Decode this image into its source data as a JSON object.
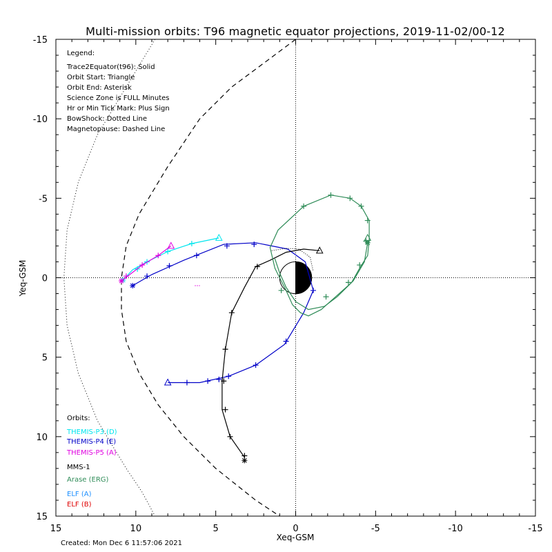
{
  "chart_data": {
    "type": "line",
    "title": "Multi-mission orbits: T96 magnetic equator projections, 2019-11-02/00-12",
    "xlabel": "Xeq-GSM",
    "ylabel": "Yeq-GSM",
    "xlim": [
      15,
      -15
    ],
    "ylim": [
      15,
      -15
    ],
    "x_ticks": [
      "15",
      "10",
      "5",
      "0",
      "-5",
      "-10",
      "-15"
    ],
    "y_ticks": [
      "-15",
      "-10",
      "-5",
      "0",
      "5",
      "10",
      "15"
    ],
    "grid": false,
    "zero_lines": "dotted",
    "legend_header": "Legend:",
    "legend_lines": [
      "Trace2Equator(t96): Solid",
      "Orbit Start: Triangle",
      "Orbit End: Asterisk",
      "Science Zone is FULL Minutes",
      "Hr or Min Tick Mark: Plus Sign",
      "BowShock: Dotted Line",
      "Magnetopause: Dashed Line"
    ],
    "orbits_header": "Orbits:",
    "created": "Created: Mon Dec  6 11:57:06 2021",
    "boundaries": {
      "bow_shock": {
        "style": "dotted",
        "points": [
          [
            8.8,
            -15
          ],
          [
            10.6,
            -12
          ],
          [
            12.4,
            -9
          ],
          [
            13.6,
            -6
          ],
          [
            14.3,
            -3
          ],
          [
            14.5,
            0
          ],
          [
            14.3,
            3
          ],
          [
            13.6,
            6
          ],
          [
            12.4,
            9
          ],
          [
            10.6,
            12
          ],
          [
            9.6,
            13.5
          ],
          [
            8.8,
            15
          ]
        ]
      },
      "magnetopause": {
        "style": "dashed",
        "points": [
          [
            0,
            -15
          ],
          [
            2,
            -13.5
          ],
          [
            4,
            -12
          ],
          [
            6,
            -10
          ],
          [
            8,
            -7
          ],
          [
            9.8,
            -4
          ],
          [
            10.6,
            -2
          ],
          [
            10.9,
            0
          ],
          [
            10.9,
            2
          ],
          [
            10.6,
            4
          ],
          [
            9.8,
            6
          ],
          [
            8.6,
            8
          ],
          [
            7,
            10
          ],
          [
            5,
            12
          ],
          [
            2.5,
            14
          ],
          [
            1,
            15
          ]
        ]
      }
    },
    "earth": {
      "radius": 1,
      "day_color": "#ffffff",
      "night_color": "#000000"
    },
    "series": [
      {
        "name": "THEMIS-P3 (D)",
        "color": "#00e5ee",
        "points": [
          [
            4.8,
            -2.5
          ],
          [
            6.5,
            -2.15
          ],
          [
            8,
            -1.65
          ],
          [
            9.3,
            -1.0
          ],
          [
            10.2,
            -0.5
          ],
          [
            10.8,
            0.15
          ]
        ],
        "ticks": [
          [
            6.5,
            -2.15
          ],
          [
            8,
            -1.65
          ],
          [
            9.3,
            -1.0
          ],
          [
            9.9,
            -0.55
          ]
        ],
        "start": [
          4.8,
          -2.5
        ],
        "end": [
          10.8,
          0.15
        ]
      },
      {
        "name": "THEMIS-P4 (E)",
        "color": "#0000c8",
        "points": [
          [
            8,
            6.6
          ],
          [
            6,
            6.6
          ],
          [
            4.2,
            6.2
          ],
          [
            2.5,
            5.5
          ],
          [
            0.7,
            4.2
          ],
          [
            -0.5,
            2.2
          ],
          [
            -1.1,
            0.8
          ],
          [
            -0.6,
            -1.0
          ],
          [
            0.5,
            -1.8
          ],
          [
            2.5,
            -2.2
          ],
          [
            4.5,
            -2.1
          ],
          [
            7,
            -1.1
          ],
          [
            9,
            -0.2
          ],
          [
            10.2,
            0.5
          ]
        ],
        "ticks": [
          [
            6.8,
            6.6
          ],
          [
            5.5,
            6.5
          ],
          [
            4.8,
            6.4
          ],
          [
            4.2,
            6.2
          ],
          [
            2.5,
            5.5
          ],
          [
            0.6,
            4.0
          ],
          [
            -1.1,
            0.8
          ],
          [
            2.6,
            -2.1
          ],
          [
            4.3,
            -2.0
          ],
          [
            6.2,
            -1.4
          ],
          [
            7.9,
            -0.75
          ],
          [
            9.3,
            -0.1
          ]
        ],
        "start": [
          8,
          6.6
        ],
        "end": [
          10.2,
          0.5
        ]
      },
      {
        "name": "THEMIS-P5 (A)",
        "color": "#e000e0",
        "points": [
          [
            7.8,
            -2.0
          ],
          [
            8.6,
            -1.4
          ],
          [
            9.6,
            -0.8
          ],
          [
            10.9,
            0.2
          ]
        ],
        "ticks": [
          [
            8.6,
            -1.4
          ],
          [
            9.6,
            -0.8
          ],
          [
            10.6,
            -0.1
          ]
        ],
        "start": [
          7.8,
          -2.0
        ],
        "end": [
          10.9,
          0.2
        ]
      },
      {
        "name": "MMS-1",
        "color": "#000000",
        "points": [
          [
            -1.5,
            -1.7
          ],
          [
            -0.5,
            -1.8
          ],
          [
            0.6,
            -1.6
          ],
          [
            1.6,
            -1.1
          ],
          [
            2.5,
            -0.7
          ],
          [
            3.2,
            0.6
          ],
          [
            4.0,
            2.2
          ],
          [
            4.4,
            4.5
          ],
          [
            4.6,
            6.5
          ],
          [
            4.6,
            8.3
          ],
          [
            4.1,
            10.0
          ],
          [
            3.2,
            11.3
          ]
        ],
        "ticks": [
          [
            2.4,
            -0.7
          ],
          [
            4.0,
            2.2
          ],
          [
            4.4,
            4.5
          ],
          [
            4.5,
            6.5
          ],
          [
            4.4,
            8.3
          ],
          [
            4.1,
            10.0
          ],
          [
            3.2,
            11.2
          ]
        ],
        "start": [
          -1.5,
          -1.7
        ],
        "end": [
          3.2,
          11.5
        ]
      },
      {
        "name": "Arase (ERG)",
        "color": "#2e8b57",
        "points": [
          [
            -4.6,
            -2.4
          ],
          [
            -4.6,
            -3.6
          ],
          [
            -4.1,
            -4.5
          ],
          [
            -3.4,
            -5.0
          ],
          [
            -2.2,
            -5.2
          ],
          [
            -0.5,
            -4.5
          ],
          [
            1.1,
            -3.0
          ],
          [
            1.6,
            -1.9
          ],
          [
            1.3,
            -0.6
          ],
          [
            0.9,
            0.2
          ],
          [
            0.6,
            0.8
          ],
          [
            0.2,
            1.7
          ],
          [
            -0.3,
            2.2
          ],
          [
            -0.8,
            2.4
          ],
          [
            -1.6,
            2.0
          ],
          [
            -2.5,
            1.2
          ],
          [
            -3.5,
            0.3
          ],
          [
            -4.0,
            -0.6
          ],
          [
            -4.5,
            -1.4
          ],
          [
            -4.6,
            -2.4
          ]
        ],
        "points2": [
          [
            -4.5,
            -2.2
          ],
          [
            -4.3,
            -1.0
          ],
          [
            -3.6,
            0.2
          ],
          [
            -2.6,
            1.2
          ],
          [
            -1.8,
            1.8
          ],
          [
            -0.8,
            2.0
          ],
          [
            0,
            1.5
          ],
          [
            0.6,
            0.6
          ],
          [
            1.0,
            -0.3
          ],
          [
            1.3,
            -1.2
          ]
        ],
        "ticks": [
          [
            -3.4,
            -5.0
          ],
          [
            -2.2,
            -5.2
          ],
          [
            -0.5,
            -4.5
          ],
          [
            -4.1,
            -4.5
          ],
          [
            -4.5,
            -3.6
          ],
          [
            -4.4,
            -2.3
          ],
          [
            -4.0,
            -0.8
          ],
          [
            -3.3,
            0.3
          ],
          [
            -1.9,
            1.2
          ],
          [
            0.9,
            0.8
          ]
        ],
        "start": [
          -4.5,
          -2.5
        ],
        "end": [
          -4.5,
          -2.2
        ]
      },
      {
        "name": "ELF (A)",
        "color": "#1e90ff",
        "points": [],
        "ticks": [],
        "start": null,
        "end": null
      },
      {
        "name": "ELF (B)",
        "color": "#e00000",
        "points": [],
        "ticks": [],
        "start": null,
        "end": null
      }
    ],
    "extra_marks": [
      {
        "color": "#e000e0",
        "from": [
          6.3,
          0.5
        ],
        "to": [
          6.0,
          0.5
        ],
        "style": "dotted"
      },
      {
        "color": "#000000",
        "points": [
          [
            1.5,
            -1.7
          ],
          [
            0.6,
            -1.85
          ],
          [
            -0.2,
            -1.8
          ],
          [
            -0.9,
            -1.3
          ],
          [
            -1.1,
            -0.4
          ]
        ],
        "style": "dotted"
      }
    ]
  }
}
